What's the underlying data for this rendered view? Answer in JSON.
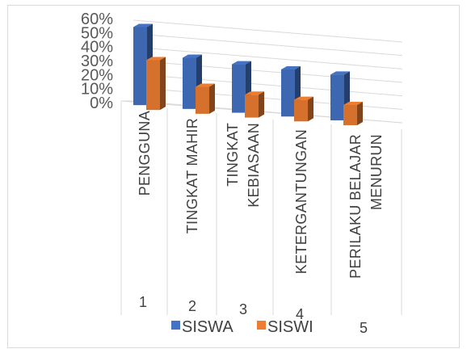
{
  "chart_data": {
    "type": "bar",
    "title": "",
    "xlabel": "",
    "ylabel": "",
    "ylim": [
      0,
      0.6
    ],
    "yticks": [
      "0%",
      "10%",
      "20%",
      "30%",
      "40%",
      "50%",
      "60%"
    ],
    "categories": [
      "1",
      "2",
      "3",
      "4",
      "5"
    ],
    "category_labels": [
      [
        "PENGGUNA"
      ],
      [
        "TINGKAT MAHIR"
      ],
      [
        "TINGKAT",
        "KEBIASAAN"
      ],
      [
        "KETERGANTUNGAN"
      ],
      [
        "PERILAKU BELAJAR",
        "MENURUN"
      ]
    ],
    "series": [
      {
        "name": "SISWA",
        "color": "#4472C4",
        "values": [
          0.58,
          0.38,
          0.36,
          0.35,
          0.34
        ]
      },
      {
        "name": "SISWI",
        "color": "#ED7D31",
        "values": [
          0.37,
          0.2,
          0.17,
          0.16,
          0.15
        ]
      }
    ],
    "legend_position": "bottom",
    "grid": true,
    "style": "3d-clustered-column"
  }
}
